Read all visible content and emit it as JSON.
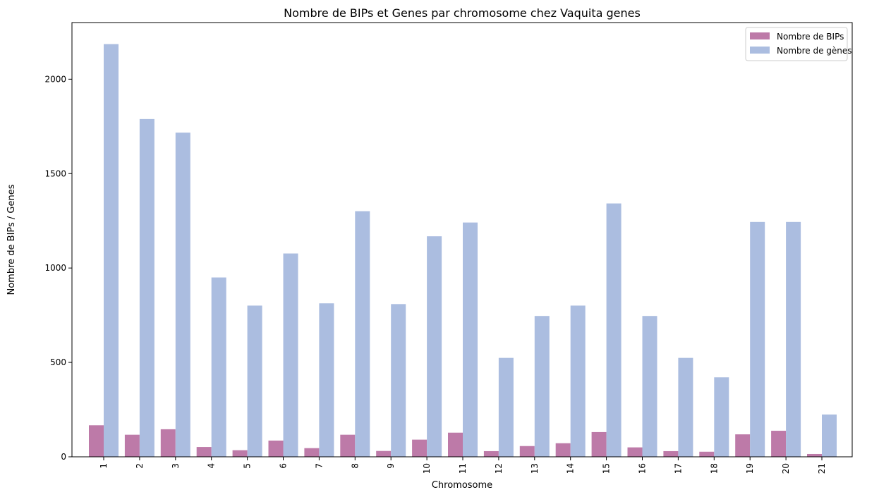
{
  "chart_data": {
    "type": "bar",
    "title": "Nombre de BIPs et Genes par chromosome chez Vaquita genes",
    "xlabel": "Chromosome",
    "ylabel": "Nombre de BIPs / Genes",
    "categories": [
      "1",
      "2",
      "3",
      "4",
      "5",
      "6",
      "7",
      "8",
      "9",
      "10",
      "11",
      "12",
      "13",
      "14",
      "15",
      "16",
      "17",
      "18",
      "19",
      "20",
      "21"
    ],
    "ylim": [
      0,
      2300
    ],
    "yticks": [
      0,
      500,
      1000,
      1500,
      2000
    ],
    "legend_position": "top-right",
    "series": [
      {
        "name": "Nombre de BIPs",
        "color": "#bd7aa8",
        "values": [
          167,
          117,
          146,
          52,
          35,
          86,
          46,
          117,
          31,
          91,
          128,
          30,
          57,
          72,
          131,
          50,
          30,
          27,
          119,
          138,
          15
        ]
      },
      {
        "name": "Nombre de gènes",
        "color": "#abbde0",
        "values": [
          2186,
          1789,
          1717,
          950,
          801,
          1077,
          813,
          1301,
          809,
          1168,
          1241,
          524,
          746,
          801,
          1342,
          746,
          524,
          421,
          1244,
          1244,
          224
        ]
      }
    ]
  }
}
